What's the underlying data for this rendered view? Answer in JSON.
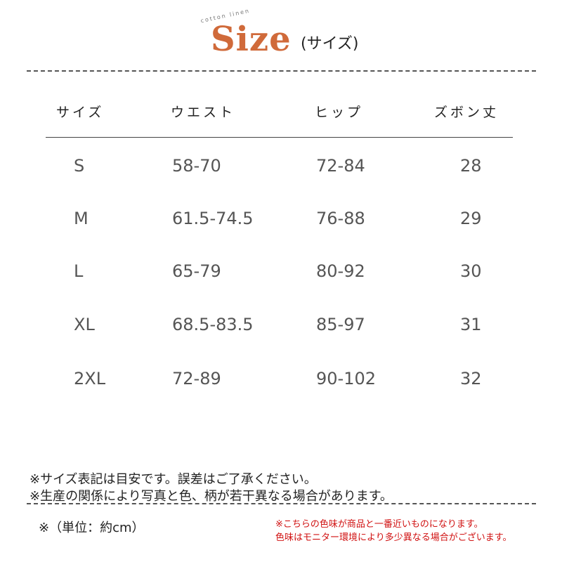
{
  "header": {
    "logo": "Size",
    "logo_tag": "cotton linen",
    "subtitle": "(サイズ)"
  },
  "table": {
    "columns": [
      "サイズ",
      "ウエスト",
      "ヒップ",
      "ズボン丈"
    ],
    "rows": [
      [
        "S",
        "58-70",
        "72-84",
        "28"
      ],
      [
        "M",
        "61.5-74.5",
        "76-88",
        "29"
      ],
      [
        "L",
        "65-79",
        "80-92",
        "30"
      ],
      [
        "XL",
        "68.5-83.5",
        "85-97",
        "31"
      ],
      [
        "2XL",
        "72-89",
        "90-102",
        "32"
      ]
    ]
  },
  "notes": [
    "※サイズ表記は目安です。誤差はご了承ください。",
    "※生産の関係により写真と色、柄が若干異なる場合があります。"
  ],
  "unit": "※（単位：約cm）",
  "color_notes": [
    "※こちらの色味が商品と一番近いものになります。",
    "色味はモニター環境により多少異なる場合がございます。"
  ],
  "colors": {
    "accent": "#d06a3a",
    "warning": "#d01010"
  }
}
